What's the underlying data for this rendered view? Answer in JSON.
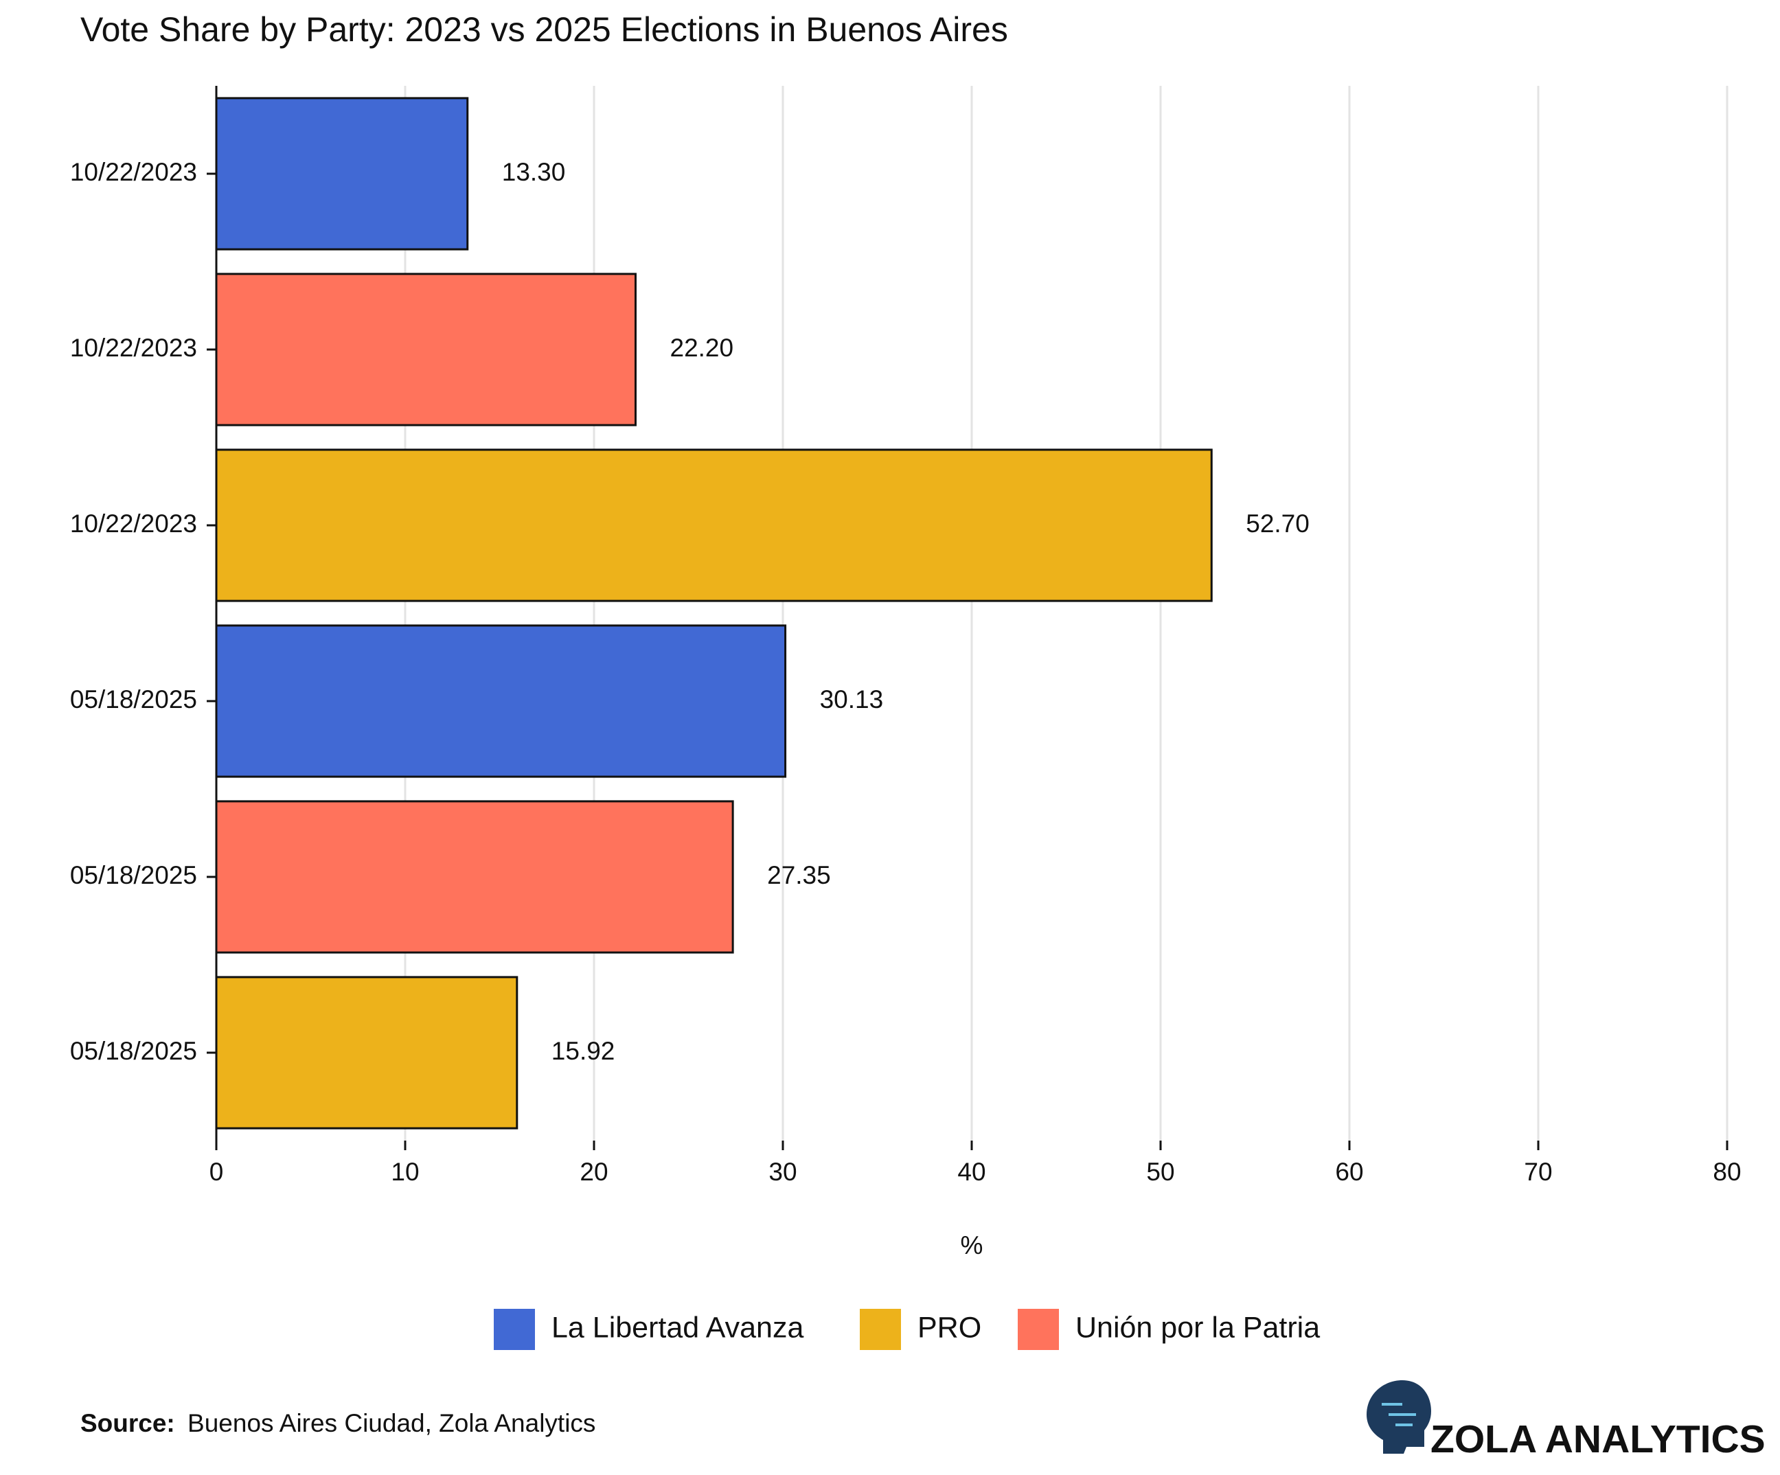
{
  "chart_data": {
    "type": "bar",
    "orientation": "horizontal",
    "title": "Vote Share by Party: 2023 vs 2025 Elections in Buenos Aires",
    "categories": [
      "10/22/2023",
      "10/22/2023",
      "10/22/2023",
      "05/18/2025",
      "05/18/2025",
      "05/18/2025"
    ],
    "series": [
      {
        "name": "La Libertad Avanza",
        "color": "#4169d4",
        "values": [
          13.3,
          null,
          null,
          30.13,
          null,
          null
        ],
        "value_labels": [
          "13.30",
          null,
          null,
          "30.13",
          null,
          null
        ]
      },
      {
        "name": "PRO",
        "color": "#edb21b",
        "values": [
          null,
          null,
          52.7,
          null,
          null,
          15.92
        ],
        "value_labels": [
          null,
          null,
          "52.70",
          null,
          null,
          "15.92"
        ]
      },
      {
        "name": "Unión por la Patria",
        "color": "#ff735c",
        "values": [
          null,
          22.2,
          null,
          null,
          27.35,
          null
        ],
        "value_labels": [
          null,
          "22.20",
          null,
          null,
          "27.35",
          null
        ]
      }
    ],
    "xlabel": "%",
    "xlim": [
      0,
      80
    ],
    "xticks": [
      0,
      10,
      20,
      30,
      40,
      50,
      60,
      70,
      80
    ],
    "grid": true,
    "legend": "bottom",
    "source_label": "Source:",
    "source": "Buenos Aires Ciudad, Zola Analytics",
    "brand": "ZOLA ANALYTICS"
  }
}
